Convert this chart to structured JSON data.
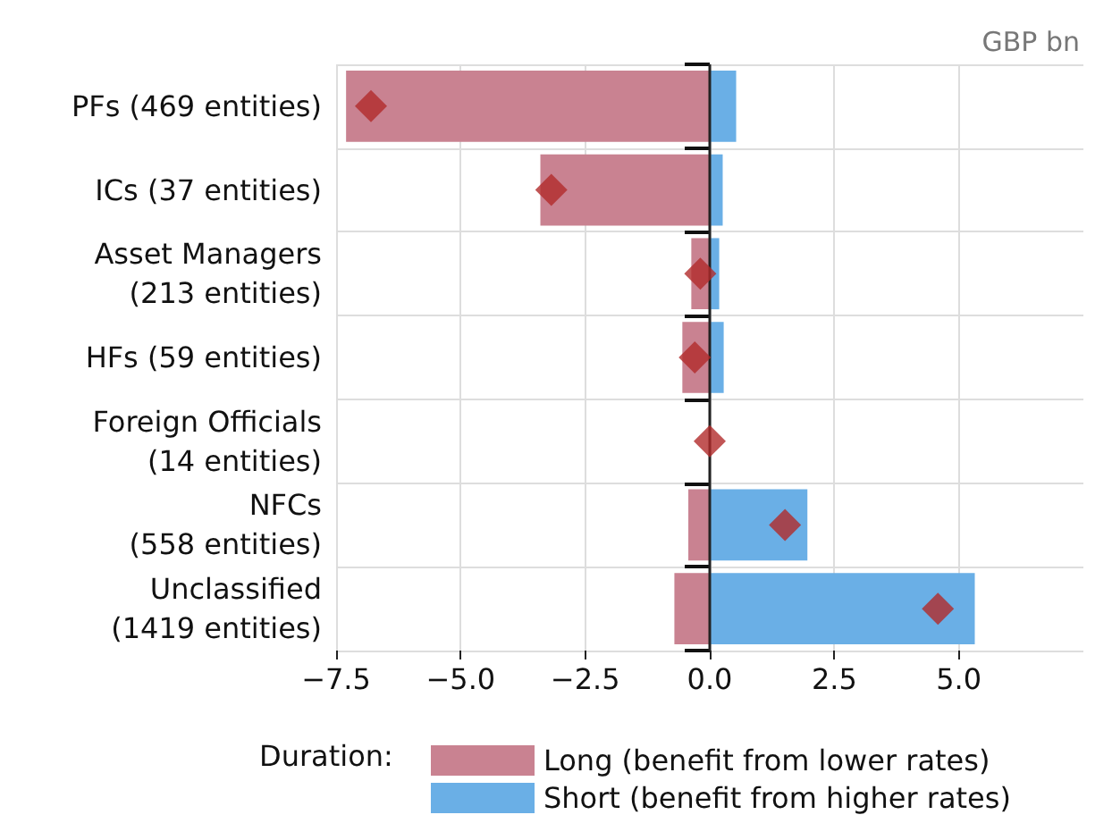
{
  "chart_data": {
    "type": "bar",
    "orientation": "horizontal",
    "stacked": true,
    "categories": [
      "PFs (469 entities)",
      "ICs (37 entities)",
      "Asset Managers\n(213 entities)",
      "HFs (59 entities)",
      "Foreign Officials\n(14 entities)",
      "NFCs\n(558 entities)",
      "Unclassified\n(1419 entities)"
    ],
    "series": [
      {
        "name": "Long (benefit from lower rates)",
        "color": "#c98291",
        "values": [
          -7.3,
          -3.4,
          -0.37,
          -0.55,
          0,
          -0.43,
          -0.71
        ]
      },
      {
        "name": "Short (benefit from higher rates)",
        "color": "#6aafe6",
        "values": [
          0.53,
          0.26,
          0.19,
          0.28,
          0,
          1.96,
          5.32
        ]
      },
      {
        "type": "scatter",
        "color": "#b22a2a",
        "marker": "diamond",
        "values": [
          -6.8,
          -3.18,
          -0.19,
          -0.3,
          0,
          1.51,
          4.58
        ]
      }
    ],
    "xlim": [
      -7.5,
      7.5
    ],
    "xticks": [
      {
        "value": -7.5,
        "label": "−7.5"
      },
      {
        "value": -5,
        "label": "−5.0"
      },
      {
        "value": -2.5,
        "label": "−2.5"
      },
      {
        "value": 0,
        "label": "0.0"
      },
      {
        "value": 2.5,
        "label": "2.5"
      },
      {
        "value": 5,
        "label": "5.0"
      }
    ],
    "ref_lines": [
      {
        "axis": "x",
        "value": 0,
        "color": "#222222"
      }
    ],
    "annotations": [
      "GBP bn"
    ],
    "legend_title": "Duration:",
    "legend": "bottom",
    "grid": true
  }
}
